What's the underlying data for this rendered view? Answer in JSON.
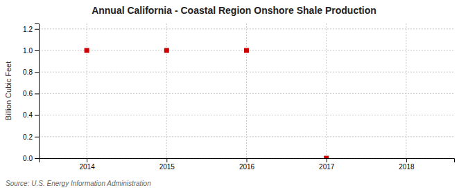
{
  "chart_data": {
    "type": "scatter",
    "title": "Annual California - Coastal Region Onshore Shale Production",
    "ylabel": "Billion Cubic Feet",
    "source": "Source: U.S. Energy Information Administration",
    "x": [
      2014,
      2015,
      2016,
      2017
    ],
    "values": [
      1.0,
      1.0,
      1.0,
      0.0
    ],
    "color": "#cc0000",
    "marker": "square",
    "xlim": [
      2013.4,
      2018.6
    ],
    "ylim": [
      0.0,
      1.25
    ],
    "xticks": [
      2014,
      2015,
      2016,
      2017,
      2018
    ],
    "yticks": [
      {
        "value": 0.0,
        "label": "0.0"
      },
      0.2,
      0.4,
      0.6,
      0.8,
      {
        "value": 1.0,
        "label": "1.0"
      },
      1.2
    ],
    "grid": true
  }
}
